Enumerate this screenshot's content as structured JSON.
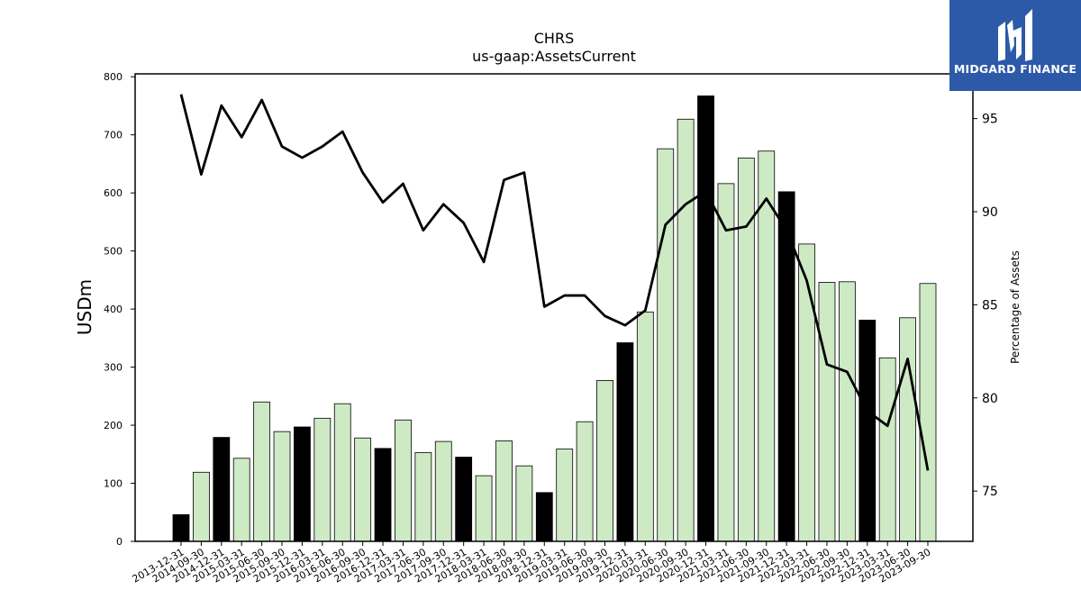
{
  "chart_data": {
    "type": "bar",
    "title": "CHRS",
    "subtitle": "us-gaap:AssetsCurrent",
    "ylabel": "USDm",
    "y2label": "Percentage of Assets",
    "ylim": [
      0,
      805
    ],
    "y2lim": [
      72.3,
      97.4
    ],
    "yticks": [
      0,
      100,
      200,
      300,
      400,
      500,
      600,
      700,
      800
    ],
    "y2ticks": [
      75,
      80,
      85,
      90,
      95
    ],
    "colors": {
      "bar_annual": "#000000",
      "bar_quarter": "#cdeac4",
      "bar_edge": "#000000",
      "line": "#000000"
    },
    "categories": [
      "2013-12-31",
      "2014-09-30",
      "2014-12-31",
      "2015-03-31",
      "2015-06-30",
      "2015-09-30",
      "2015-12-31",
      "2016-03-31",
      "2016-06-30",
      "2016-09-30",
      "2016-12-31",
      "2017-03-31",
      "2017-06-30",
      "2017-09-30",
      "2017-12-31",
      "2018-03-31",
      "2018-06-30",
      "2018-09-30",
      "2018-12-31",
      "2019-03-31",
      "2019-06-30",
      "2019-09-30",
      "2019-12-31",
      "2020-03-31",
      "2020-06-30",
      "2020-09-30",
      "2020-12-31",
      "2021-03-31",
      "2021-06-30",
      "2021-09-30",
      "2021-12-31",
      "2022-03-31",
      "2022-06-30",
      "2022-09-30",
      "2022-12-31",
      "2023-03-31",
      "2023-06-30",
      "2023-09-30"
    ],
    "series": [
      {
        "type": "bar",
        "values": [
          46,
          119,
          179,
          143,
          240,
          189,
          197,
          212,
          237,
          178,
          160,
          209,
          153,
          172,
          145,
          113,
          173,
          130,
          84,
          159,
          206,
          277,
          342,
          395,
          676,
          727,
          767,
          616,
          660,
          672,
          602,
          512,
          446,
          447,
          381,
          316,
          385,
          444
        ],
        "annual": [
          true,
          false,
          true,
          false,
          false,
          false,
          true,
          false,
          false,
          false,
          true,
          false,
          false,
          false,
          true,
          false,
          false,
          false,
          true,
          false,
          false,
          false,
          true,
          false,
          false,
          false,
          true,
          false,
          false,
          false,
          true,
          false,
          false,
          false,
          true,
          false,
          false,
          false
        ]
      },
      {
        "type": "line",
        "axis": "right",
        "values": [
          96.3,
          92.0,
          95.7,
          94.0,
          96.0,
          93.5,
          92.9,
          93.5,
          94.3,
          92.1,
          90.5,
          91.5,
          89.0,
          90.4,
          89.4,
          87.3,
          91.7,
          92.1,
          84.9,
          85.5,
          85.5,
          84.4,
          83.9,
          84.7,
          89.3,
          90.4,
          91.1,
          89.0,
          89.2,
          90.7,
          89.0,
          86.3,
          81.8,
          81.4,
          79.3,
          78.5,
          82.1,
          76.1
        ]
      }
    ]
  },
  "brand": {
    "name": "MIDGARD FINANCE",
    "logo_icon": "midgard-m-icon"
  }
}
